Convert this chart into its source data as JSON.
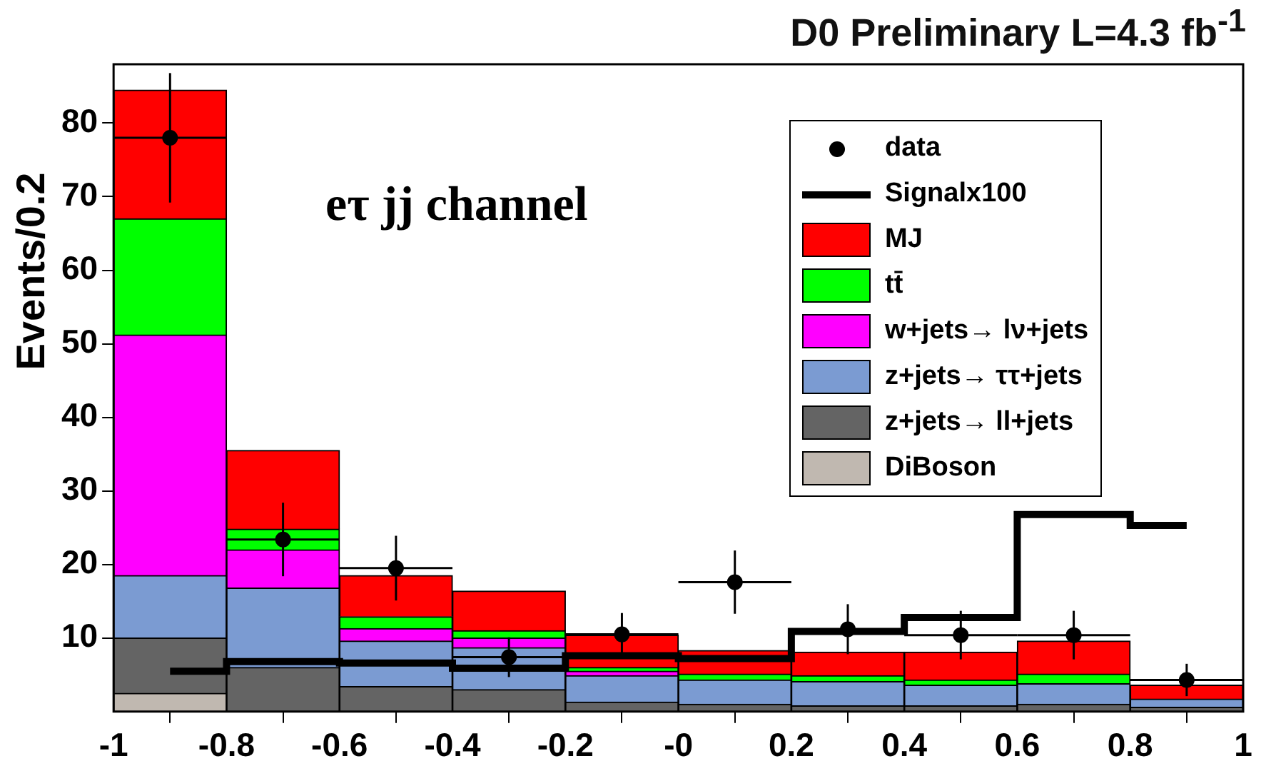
{
  "chart_data": {
    "type": "bar",
    "title": "D0 Preliminary L=4.3 fb$^{-1}$",
    "ylabel": "Events/0.2",
    "annotations": [
      "eτ jj channel"
    ],
    "x": [
      -0.9,
      -0.7,
      -0.5,
      -0.3,
      -0.1,
      0.1,
      0.3,
      0.5,
      0.7,
      0.9
    ],
    "stacked": true,
    "series": [
      {
        "name": "DiBoson",
        "type": "bar",
        "color": "#c0b8b0",
        "values": [
          2.5,
          0,
          0,
          0,
          0,
          0,
          0,
          0,
          0,
          0
        ]
      },
      {
        "name": "z+jets→ ll+jets",
        "type": "bar",
        "color": "#646464",
        "values": [
          7.5,
          6,
          3.4,
          3,
          1.3,
          1,
          0.8,
          0.8,
          1,
          0.6
        ]
      },
      {
        "name": "z+jets→ ττ+jets",
        "type": "bar",
        "color": "#7b9bd2",
        "values": [
          8.5,
          10.8,
          6.2,
          5.7,
          3.6,
          3.3,
          3.3,
          2.8,
          2.8,
          1.1
        ]
      },
      {
        "name": "w+jets→ lν+jets",
        "type": "bar",
        "color": "#ff00ff",
        "values": [
          32.7,
          5.2,
          1.7,
          1.3,
          0.6,
          0,
          0,
          0,
          0,
          0
        ]
      },
      {
        "name": "tt̄",
        "type": "bar",
        "color": "#00ff00",
        "values": [
          15.8,
          2.8,
          1.6,
          1,
          0.5,
          0.8,
          0.8,
          0.7,
          1.3,
          0
        ]
      },
      {
        "name": "MJ",
        "type": "bar",
        "color": "#ff0000",
        "values": [
          17.5,
          10.7,
          5.6,
          5.4,
          4.4,
          3.2,
          3.2,
          3.8,
          4.5,
          1.9
        ]
      },
      {
        "name": "Signalx100",
        "type": "step",
        "color": "#000000",
        "values": [
          5.5,
          6.8,
          6.6,
          5.9,
          7.6,
          7.2,
          10.9,
          12.8,
          26.8,
          25.3
        ]
      },
      {
        "name": "data",
        "type": "scatter",
        "color": "#000000",
        "marker": "circle",
        "values": [
          78,
          23.4,
          19.5,
          7.4,
          10.5,
          17.6,
          11.2,
          10.4,
          10.4,
          4.3
        ],
        "errors": [
          8.8,
          5,
          4.4,
          2.7,
          2.9,
          4.3,
          3.4,
          3.3,
          3.3,
          2.2
        ],
        "xerrors": [
          0.1,
          0.1,
          0.1,
          0.1,
          0.1,
          0.1,
          0.1,
          0.1,
          0.1,
          0.1
        ]
      }
    ],
    "xlim": [
      -1,
      1
    ],
    "xticks": [
      -1,
      -0.8,
      -0.6,
      -0.4,
      -0.2,
      {
        "value": 0,
        "label": "-0"
      },
      0.2,
      0.4,
      0.6,
      0.8,
      1
    ],
    "ylim": [
      0,
      88
    ],
    "yticks": [
      10,
      20,
      30,
      40,
      50,
      60,
      70,
      80
    ],
    "legend": "top right"
  }
}
